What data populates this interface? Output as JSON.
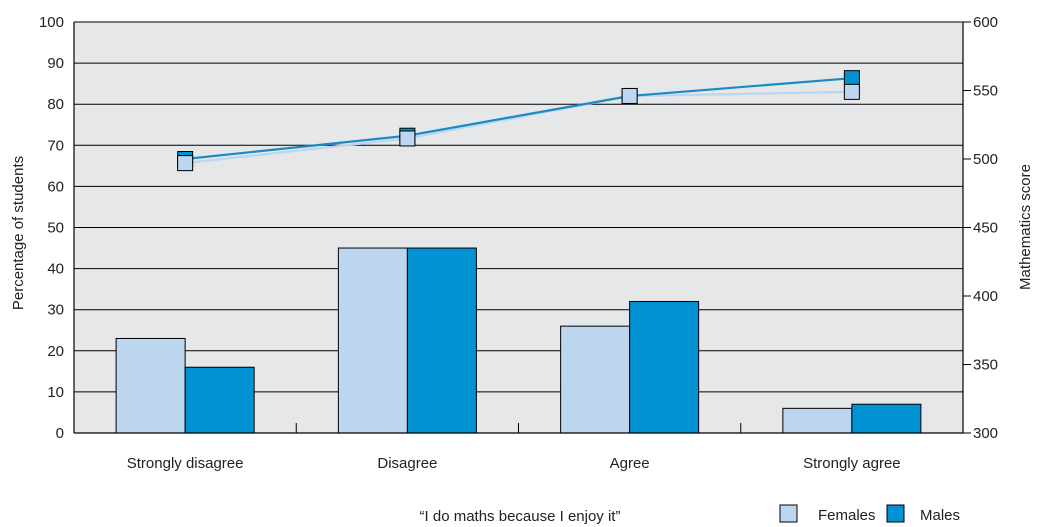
{
  "chart_data": {
    "type": "bar",
    "title": "",
    "xlabel": "“I do maths because I enjoy it”",
    "ylabel": "Percentage of students",
    "y2label": "Mathematics score",
    "categories": [
      "Strongly disagree",
      "Disagree",
      "Agree",
      "Strongly agree"
    ],
    "ylim": [
      0,
      100
    ],
    "y2lim": [
      300,
      600
    ],
    "yticks": [
      "0",
      "10",
      "20",
      "30",
      "40",
      "50",
      "60",
      "70",
      "80",
      "90",
      "100"
    ],
    "y2ticks": [
      "300",
      "350",
      "400",
      "450",
      "500",
      "550",
      "600"
    ],
    "grid": true,
    "legend": "bottom-right",
    "series": [
      {
        "name": "Females",
        "color": "#bcd6f0",
        "values": [
          23,
          45,
          26,
          6
        ]
      },
      {
        "name": "Males",
        "color": "#0092d2",
        "values": [
          16,
          45,
          32,
          7
        ]
      }
    ],
    "line_series": [
      {
        "name": "Females",
        "color": "#bcd6f0",
        "axis": "right",
        "values": [
          497,
          515,
          546,
          549
        ]
      },
      {
        "name": "Males",
        "color": "#0092d2",
        "axis": "right",
        "values": [
          500,
          517,
          546,
          559
        ]
      }
    ],
    "colors": {
      "plot_background": "#e6e7e8",
      "grid": "#000000",
      "line_males": "#1a8ac6",
      "line_females": "#bcd6f0"
    }
  }
}
